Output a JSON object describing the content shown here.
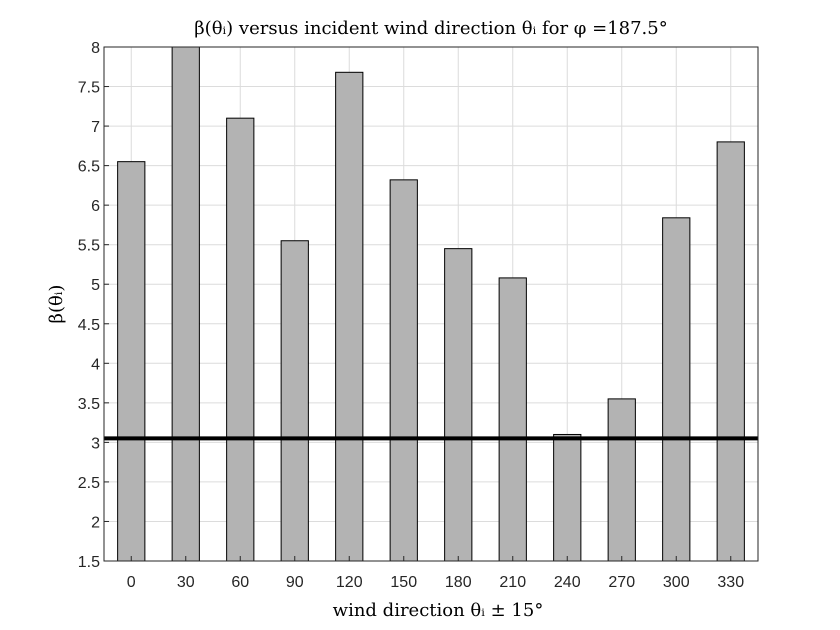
{
  "chart_data": {
    "type": "bar",
    "title": "β(θᵢ) versus incident wind direction θᵢ for φ =187.5°",
    "xlabel": "wind direction θᵢ ± 15°",
    "ylabel": "β(θᵢ)",
    "categories": [
      "0",
      "30",
      "60",
      "90",
      "120",
      "150",
      "180",
      "210",
      "240",
      "270",
      "300",
      "330"
    ],
    "values": [
      6.55,
      8.0,
      7.1,
      5.55,
      7.68,
      6.32,
      5.45,
      5.08,
      3.1,
      3.55,
      5.84,
      6.8
    ],
    "ylim": [
      1.5,
      8
    ],
    "yticks": [
      1.5,
      2,
      2.5,
      3,
      3.5,
      4,
      4.5,
      5,
      5.5,
      6,
      6.5,
      7,
      7.5,
      8
    ],
    "ytick_labels": [
      "1.5",
      "2",
      "2.5",
      "3",
      "3.5",
      "4",
      "4.5",
      "5",
      "5.5",
      "6",
      "6.5",
      "7",
      "7.5",
      "8"
    ],
    "reference_line": 3.05,
    "grid": true,
    "colors": {
      "bar": "#b3b3b3",
      "bar_edge": "#000000",
      "reference_line": "#000000",
      "grid": "#dcdcdc"
    }
  }
}
